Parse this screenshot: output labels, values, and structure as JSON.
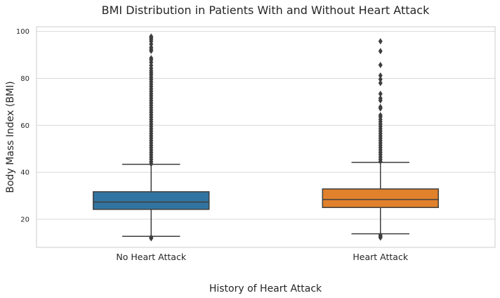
{
  "chart_data": {
    "type": "box",
    "title": "BMI Distribution in Patients With and Without Heart Attack",
    "xlabel": "History of Heart Attack",
    "ylabel": "Body Mass Index (BMI)",
    "ylim": [
      8,
      102
    ],
    "yticks": [
      20,
      40,
      60,
      80,
      100
    ],
    "grid": true,
    "categories": [
      "No Heart Attack",
      "Heart Attack"
    ],
    "boxes": [
      {
        "name": "No Heart Attack",
        "color": "#3274a1",
        "whisker_low": 12.7,
        "q1": 24.2,
        "median": 27.3,
        "q3": 31.7,
        "whisker_high": 43.4,
        "outliers_high": [
          43.6,
          44.5,
          45.5,
          46.5,
          47.5,
          48.5,
          49.5,
          50.5,
          51.5,
          52.5,
          53.5,
          54.5,
          55.5,
          56.5,
          57.5,
          58.5,
          59.5,
          60.5,
          61.5,
          62.5,
          63.5,
          64.5,
          65.5,
          66.5,
          67.5,
          68.5,
          69.5,
          70.5,
          71.5,
          72.5,
          73.5,
          74.5,
          75.5,
          76.5,
          77.5,
          78.5,
          79.5,
          80.5,
          81.5,
          82.3,
          83.2,
          84.3,
          85.5,
          86.8,
          87.9,
          88.6,
          91.7,
          92.4,
          93.2,
          94.6,
          95.8,
          96.6,
          97.3,
          97.8
        ],
        "outliers_low": [
          11.9,
          12.3
        ]
      },
      {
        "name": "Heart Attack",
        "color": "#e1812c",
        "whisker_low": 13.8,
        "q1": 25.0,
        "median": 28.4,
        "q3": 32.9,
        "whisker_high": 44.2,
        "outliers_high": [
          44.6,
          45.5,
          46.5,
          47.5,
          48.5,
          49.5,
          50.5,
          51.5,
          52.5,
          53.5,
          54.5,
          55.5,
          56.5,
          57.5,
          58.5,
          59.5,
          60.5,
          61.5,
          62.5,
          63.6,
          64.3,
          67.2,
          67.8,
          70.6,
          71.5,
          73.4,
          78.0,
          79.6,
          81.2,
          85.7,
          91.6,
          95.8
        ],
        "outliers_low": [
          12.2,
          12.6,
          13.2
        ]
      }
    ]
  }
}
